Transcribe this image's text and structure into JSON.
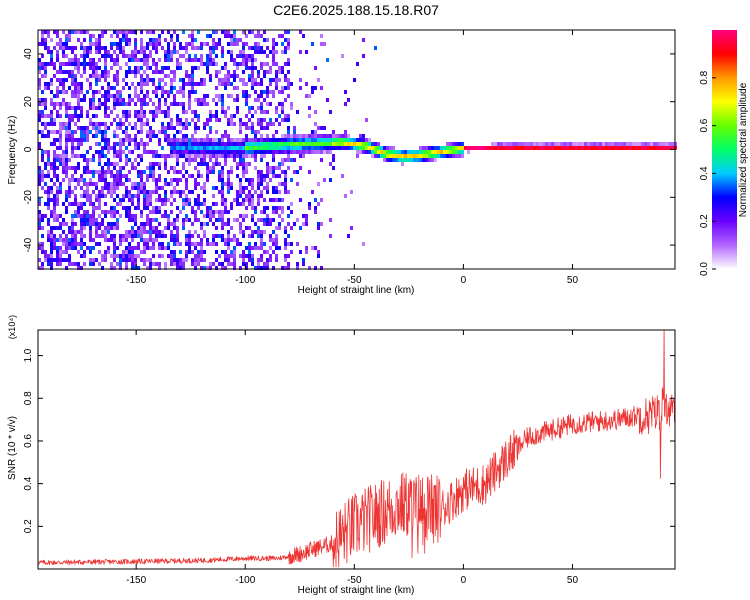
{
  "title": "C2E6.2025.188.15.18.R07",
  "chart_data": [
    {
      "type": "heatmap",
      "xlabel": "Height of straight line (km)",
      "ylabel": "Frequency (Hz)",
      "xlim": [
        -195,
        97
      ],
      "ylim": [
        -50,
        50
      ],
      "x_ticks": [
        -150,
        -100,
        -50,
        0,
        50
      ],
      "y_ticks": [
        -40,
        -20,
        0,
        20,
        40
      ],
      "grid": false,
      "colorbar": {
        "label": "Normalized spectral amplitude",
        "ticks": [
          0.0,
          0.2,
          0.4,
          0.6,
          0.8
        ],
        "range": [
          0,
          1
        ],
        "colors": [
          "#ffffff",
          "#b266ff",
          "#6a00ff",
          "#0000ff",
          "#00ccff",
          "#00ff66",
          "#66ff00",
          "#ffff00",
          "#ff9900",
          "#ff0000",
          "#ff0080"
        ]
      },
      "ridge": [
        {
          "x": -130,
          "y": 1.0
        },
        {
          "x": -110,
          "y": 0.5
        },
        {
          "x": -95,
          "y": 1.0
        },
        {
          "x": -80,
          "y": 2.0
        },
        {
          "x": -65,
          "y": 2.5
        },
        {
          "x": -55,
          "y": 3.0
        },
        {
          "x": -45,
          "y": 1.5
        },
        {
          "x": -35,
          "y": -2.0
        },
        {
          "x": -28,
          "y": -3.0
        },
        {
          "x": -20,
          "y": -2.5
        },
        {
          "x": -10,
          "y": -1.0
        },
        {
          "x": 0,
          "y": 0.5
        },
        {
          "x": 15,
          "y": 0.8
        },
        {
          "x": 40,
          "y": 0.8
        },
        {
          "x": 95,
          "y": 0.8
        }
      ]
    },
    {
      "type": "line",
      "xlabel": "Height of straight line (km)",
      "ylabel": "SNR (10 * v/v)",
      "y_multiplier": "(x10⁴)",
      "xlim": [
        -195,
        97
      ],
      "ylim": [
        0,
        1.12
      ],
      "x_ticks": [
        -150,
        -100,
        -50,
        0,
        50
      ],
      "y_ticks": [
        0.2,
        0.4,
        0.6,
        0.8,
        1.0
      ],
      "color": "#ee3333",
      "series": [
        {
          "x": [
            -195,
            -150,
            -120,
            -100,
            -85,
            -75,
            -70,
            -60,
            -50,
            -40,
            -30,
            -20,
            -10,
            0,
            10,
            20,
            30,
            40,
            50,
            60,
            70,
            80,
            85,
            90,
            92,
            95,
            97
          ],
          "y": [
            0.03,
            0.035,
            0.04,
            0.05,
            0.05,
            0.07,
            0.09,
            0.12,
            0.2,
            0.25,
            0.3,
            0.3,
            0.28,
            0.37,
            0.4,
            0.52,
            0.62,
            0.65,
            0.68,
            0.69,
            0.7,
            0.72,
            0.72,
            0.74,
            0.8,
            0.72,
            0.75
          ]
        }
      ]
    }
  ]
}
